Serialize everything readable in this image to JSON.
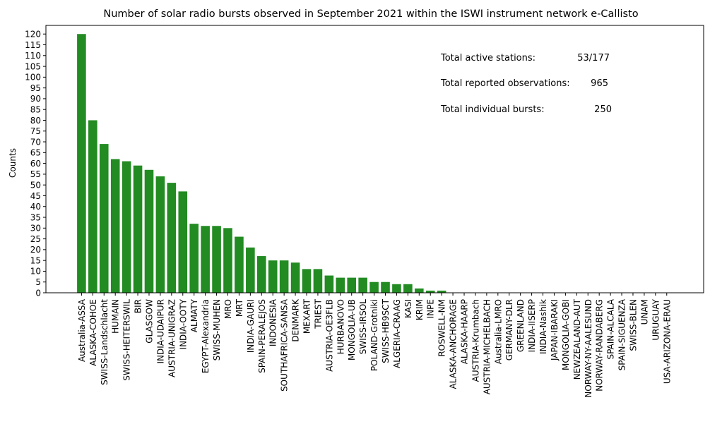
{
  "chart_data": {
    "type": "bar",
    "title": "Number of solar radio bursts observed in September 2021 within the ISWI instrument network e-Callisto",
    "xlabel": "",
    "ylabel": "Counts",
    "ylim": [
      0,
      124
    ],
    "yticks": [
      0,
      5,
      10,
      15,
      20,
      25,
      30,
      35,
      40,
      45,
      50,
      55,
      60,
      65,
      70,
      75,
      80,
      85,
      90,
      95,
      100,
      105,
      110,
      115,
      120
    ],
    "grid": false,
    "bar_color": "#228b22",
    "categories": [
      "Australia-ASSA",
      "ALASKA-COHOE",
      "SWISS-Landschlacht",
      "HUMAIN",
      "SWISS-HEITERSWIL",
      "BIR",
      "GLASGOW",
      "INDIA-UDAIPUR",
      "AUSTRIA-UNIGRAZ",
      "INDIA-OOTY",
      "ALMATY",
      "EGYPT-Alexandria",
      "SWISS-MUHEN",
      "MRO",
      "MRT",
      "INDIA-GAURI",
      "SPAIN-PERALEJOS",
      "INDONESIA",
      "SOUTHAFRICA-SANSA",
      "DENMARK",
      "MEXART",
      "TRIEST",
      "AUSTRIA-OE3FLB",
      "HURBANOVO",
      "MONGOLIA-UB",
      "SWISS-IRSOL",
      "POLAND-Grotniki",
      "SWISS-HB9SCT",
      "ALGERIA-CRAAG",
      "KASI",
      "KRIM",
      "INPE",
      "ROSWELL-NM",
      "ALASKA-ANCHORAGE",
      "ALASKA-HAARP",
      "AUSTRIA-Krumbach",
      "AUSTRIA-MICHELBACH",
      "Australia-LMRO",
      "GERMANY-DLR",
      "GREENLAND",
      "INDIA-IISERP",
      "INDIA-Nashik",
      "JAPAN-IBARAKI",
      "MONGOLIA-GOBI",
      "NEWZEALAND-AUT",
      "NORWAY-NY-AALESUND",
      "NORWAY-RANDABERG",
      "SPAIN-ALCALA",
      "SPAIN-SIGUENZA",
      "SWISS-BLEN",
      "UNAM",
      "URUGUAY",
      "USA-ARIZONA-ERAU"
    ],
    "values": [
      120,
      80,
      69,
      62,
      61,
      59,
      57,
      54,
      51,
      47,
      32,
      31,
      31,
      30,
      26,
      21,
      17,
      15,
      15,
      14,
      11,
      11,
      8,
      7,
      7,
      7,
      5,
      5,
      4,
      4,
      2,
      1,
      1,
      0,
      0,
      0,
      0,
      0,
      0,
      0,
      0,
      0,
      0,
      0,
      0,
      0,
      0,
      0,
      0,
      0,
      0,
      0,
      0
    ],
    "annotations": [
      {
        "label": "Total active stations:",
        "value": "53/177"
      },
      {
        "label": "Total reported observations:",
        "value": "965"
      },
      {
        "label": "Total individual bursts:",
        "value": "250"
      }
    ]
  }
}
